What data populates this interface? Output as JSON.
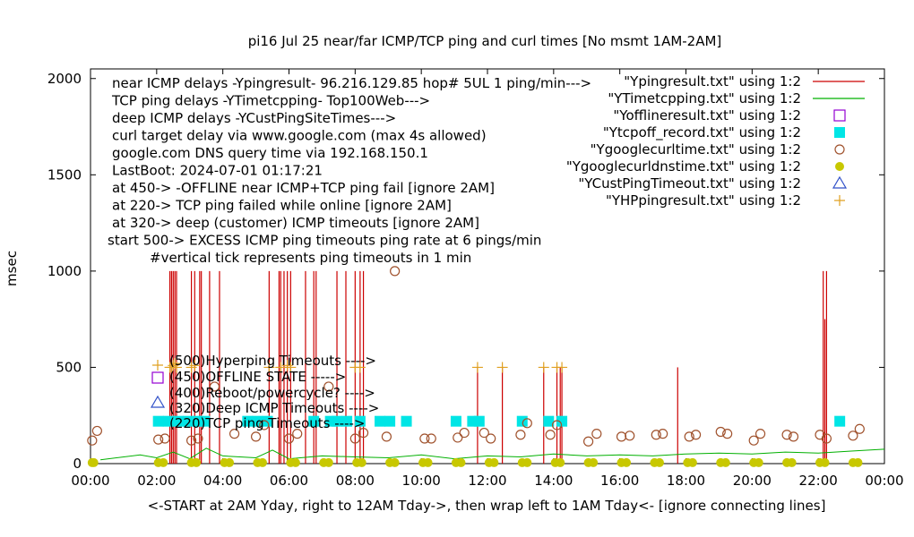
{
  "chart_data": {
    "type": "scatter",
    "title": "pi16 Jul 25  near/far ICMP/TCP ping and curl times [No msmt 1AM-2AM]",
    "xlabel": "<-START at 2AM Yday, right to 12AM Tday->, then wrap left to 1AM Tday<- [ignore connecting lines]",
    "ylabel": "msec",
    "xlim": [
      0,
      24
    ],
    "ylim": [
      0,
      2050
    ],
    "x_ticks": [
      "00:00",
      "02:00",
      "04:00",
      "06:00",
      "08:00",
      "10:00",
      "12:00",
      "14:00",
      "16:00",
      "18:00",
      "20:00",
      "22:00",
      "00:00"
    ],
    "y_ticks": [
      "0",
      "500",
      "1000",
      "1500",
      "2000"
    ],
    "grid": false,
    "legend_position": "top-right",
    "info_lines": [
      "near ICMP delays -Ypingresult- 96.216.129.85 hop# 5UL 1 ping/min--->",
      "TCP ping delays -YTimetcpping- Top100Web--->",
      "deep ICMP delays -YCustPingSiteTimes--->",
      "curl target delay via www.google.com (max 4s allowed)",
      "google.com DNS query time via 192.168.150.1",
      "LastBoot: 2024-07-01 01:17:21",
      "at 450-> -OFFLINE near ICMP+TCP ping fail [ignore 2AM]",
      "at 220-> TCP ping failed while online [ignore 2AM]",
      "at 320-> deep (customer) ICMP timeouts [ignore 2AM]",
      "start 500-> EXCESS ICMP ping timeouts ping rate at 6 pings/min",
      "#vertical tick represents ping timeouts in 1 min"
    ],
    "marker_labels": [
      "(500)Hyperping Timeouts ---->",
      "(450)OFFLINE STATE ----->",
      "(400)Reboot/powercycle? ---->",
      "(320)Deep ICMP Timeouts ---->",
      "(220)TCP ping Timeouts ---->"
    ],
    "legend": [
      {
        "label": "\"Ypingresult.txt\" using 1:2",
        "color": "#cc0000",
        "marker": "line"
      },
      {
        "label": "\"YTimetcpping.txt\" using 1:2",
        "color": "#00b000",
        "marker": "line"
      },
      {
        "label": "\"Yofflineresult.txt\" using 1:2",
        "color": "#9400d3",
        "marker": "open-square"
      },
      {
        "label": "\"Ytcpoff_record.txt\" using 1:2",
        "color": "#00e5e5",
        "marker": "filled-square"
      },
      {
        "label": "\"Ygooglecurltime.txt\" using 1:2",
        "color": "#a0522d",
        "marker": "open-circle"
      },
      {
        "label": "\"Ygooglecurldnstime.txt\" using 1:2",
        "color": "#c8c800",
        "marker": "filled-circle"
      },
      {
        "label": "\"YCustPingTimeout.txt\" using 1:2",
        "color": "#3050c8",
        "marker": "open-triangle"
      },
      {
        "label": "\"YHPpingresult.txt\" using 1:2",
        "color": "#e0a020",
        "marker": "plus"
      }
    ],
    "series": [
      {
        "name": "\"Ypingresult.txt\" using 1:2",
        "style": "spikes",
        "color": "#cc0000",
        "x": [
          2.4,
          2.45,
          2.5,
          2.55,
          2.6,
          3.05,
          3.15,
          3.3,
          3.35,
          3.6,
          3.9,
          5.4,
          5.7,
          5.75,
          5.85,
          5.95,
          6.05,
          6.5,
          6.75,
          6.82,
          7.45,
          7.72,
          8.0,
          8.15,
          8.25,
          11.7,
          12.45,
          13.7,
          14.1,
          14.2,
          14.25,
          17.75,
          22.15,
          22.2,
          22.25
        ],
        "y": [
          1000,
          1000,
          1000,
          1000,
          1000,
          1000,
          1000,
          1000,
          1000,
          1000,
          1000,
          1000,
          1000,
          1000,
          1000,
          1000,
          1000,
          1000,
          1000,
          1000,
          1000,
          1000,
          1000,
          1000,
          1000,
          500,
          500,
          500,
          500,
          500,
          500,
          500,
          1000,
          750,
          1000
        ]
      },
      {
        "name": "\"YTimetcpping.txt\" using 1:2",
        "style": "line",
        "color": "#00b000",
        "x": [
          0.3,
          1.5,
          2.0,
          2.5,
          3.0,
          3.5,
          4.0,
          5.0,
          5.5,
          6.0,
          7.0,
          8.0,
          9.0,
          10.0,
          11.0,
          12.0,
          13.0,
          14.0,
          15.0,
          16.0,
          17.0,
          18.0,
          19.0,
          20.0,
          21.0,
          22.0,
          23.0,
          24.0
        ],
        "y": [
          20,
          45,
          30,
          60,
          25,
          80,
          40,
          30,
          70,
          25,
          40,
          35,
          30,
          45,
          25,
          40,
          35,
          50,
          40,
          45,
          40,
          50,
          55,
          50,
          60,
          55,
          65,
          75
        ]
      },
      {
        "name": "\"Ytcpoff_record.txt\" using 1:2",
        "style": "square",
        "color": "#00e5e5",
        "x": [
          2.05,
          2.35,
          2.65,
          2.95,
          3.25,
          3.45,
          4.75,
          5.05,
          5.35,
          6.75,
          7.25,
          7.45,
          7.75,
          8.15,
          8.75,
          9.05,
          9.55,
          11.05,
          11.55,
          11.75,
          13.05,
          13.85,
          14.25,
          22.65
        ],
        "y": [
          220,
          220,
          220,
          220,
          220,
          220,
          220,
          220,
          220,
          220,
          220,
          220,
          220,
          220,
          220,
          220,
          220,
          220,
          220,
          220,
          220,
          220,
          220,
          220
        ]
      },
      {
        "name": "\"Ygooglecurltime.txt\" using 1:2",
        "style": "open-circle",
        "color": "#a0522d",
        "x": [
          0.05,
          0.2,
          2.05,
          2.25,
          3.05,
          3.25,
          3.75,
          4.35,
          5.0,
          5.25,
          6.0,
          6.25,
          7.2,
          8.0,
          8.25,
          8.95,
          9.2,
          10.1,
          10.3,
          11.1,
          11.3,
          11.9,
          12.1,
          13.0,
          13.2,
          13.9,
          14.1,
          15.05,
          15.3,
          16.05,
          16.3,
          17.1,
          17.3,
          18.1,
          18.3,
          19.05,
          19.25,
          20.05,
          20.25,
          21.05,
          21.25,
          22.05,
          22.25,
          23.05,
          23.25
        ],
        "y": [
          120,
          170,
          125,
          130,
          120,
          130,
          400,
          155,
          140,
          200,
          130,
          155,
          400,
          130,
          160,
          140,
          1000,
          130,
          130,
          135,
          160,
          160,
          130,
          150,
          210,
          150,
          200,
          115,
          155,
          140,
          145,
          150,
          155,
          140,
          150,
          165,
          155,
          120,
          155,
          150,
          140,
          150,
          130,
          145,
          180
        ]
      },
      {
        "name": "\"Ygooglecurldnstime.txt\" using 1:2",
        "style": "filled-circle",
        "color": "#c8c800",
        "x": [
          0.05,
          0.1,
          2.05,
          2.2,
          3.05,
          3.2,
          4.05,
          4.2,
          5.05,
          5.2,
          6.05,
          6.2,
          7.05,
          7.2,
          8.05,
          8.2,
          9.05,
          9.2,
          10.05,
          10.2,
          11.05,
          11.2,
          12.05,
          12.2,
          13.05,
          13.2,
          14.05,
          14.2,
          15.05,
          15.2,
          16.05,
          16.2,
          17.05,
          17.2,
          18.05,
          18.2,
          19.05,
          19.2,
          20.05,
          20.2,
          21.05,
          21.2,
          22.05,
          22.2,
          23.05,
          23.2
        ],
        "y": [
          5,
          5,
          5,
          5,
          5,
          5,
          5,
          5,
          5,
          5,
          5,
          5,
          5,
          5,
          5,
          5,
          5,
          5,
          5,
          5,
          5,
          5,
          5,
          5,
          5,
          5,
          5,
          5,
          5,
          5,
          5,
          5,
          5,
          5,
          5,
          5,
          5,
          5,
          5,
          5,
          5,
          5,
          5,
          5,
          5,
          5
        ]
      },
      {
        "name": "\"YHPpingresult.txt\" using 1:2",
        "style": "plus",
        "color": "#e0a020",
        "x": [
          2.4,
          2.45,
          2.5,
          2.55,
          2.6,
          3.05,
          3.15,
          5.4,
          5.75,
          5.95,
          6.05,
          8.0,
          8.15,
          11.7,
          12.45,
          13.7,
          14.1,
          14.25
        ],
        "y": [
          500,
          500,
          510,
          520,
          500,
          500,
          510,
          500,
          500,
          510,
          500,
          500,
          500,
          500,
          500,
          500,
          500,
          500
        ]
      }
    ]
  }
}
